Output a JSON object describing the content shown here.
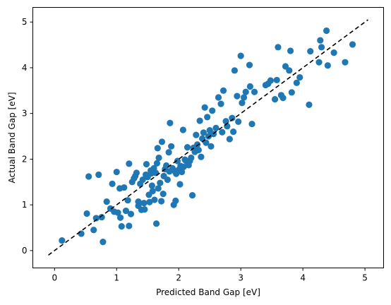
{
  "chart_data": {
    "type": "scatter",
    "title": "",
    "xlabel": "Predicted Band Gap [eV]",
    "ylabel": "Actual Band Gap [eV]",
    "xlim": [
      -0.35,
      5.3
    ],
    "ylim": [
      -0.38,
      5.32
    ],
    "xticks": [
      0,
      1,
      2,
      3,
      4,
      5
    ],
    "yticks": [
      0,
      1,
      2,
      3,
      4,
      5
    ],
    "grid": false,
    "legend": "none",
    "colors": {
      "points": "#1f77b4",
      "reference_line": "#000000"
    },
    "reference_line": {
      "style": "dashed",
      "x": [
        -0.1,
        5.05
      ],
      "y": [
        -0.1,
        5.05
      ]
    },
    "points": [
      [
        0.12,
        0.22
      ],
      [
        0.43,
        0.37
      ],
      [
        0.52,
        0.81
      ],
      [
        0.55,
        1.62
      ],
      [
        0.63,
        0.45
      ],
      [
        0.67,
        0.71
      ],
      [
        0.71,
        1.66
      ],
      [
        0.76,
        0.73
      ],
      [
        0.78,
        0.19
      ],
      [
        0.84,
        1.07
      ],
      [
        0.9,
        0.92
      ],
      [
        0.93,
        1.46
      ],
      [
        0.96,
        0.85
      ],
      [
        1.0,
        1.72
      ],
      [
        1.02,
        0.83
      ],
      [
        1.05,
        1.36
      ],
      [
        1.06,
        0.72
      ],
      [
        1.08,
        0.53
      ],
      [
        1.12,
        1.38
      ],
      [
        1.15,
        0.87
      ],
      [
        1.18,
        1.1
      ],
      [
        1.2,
        0.54
      ],
      [
        1.2,
        1.9
      ],
      [
        1.23,
        0.8
      ],
      [
        1.25,
        1.5
      ],
      [
        1.28,
        1.58
      ],
      [
        1.3,
        1.63
      ],
      [
        1.32,
        1.7
      ],
      [
        1.35,
        0.98
      ],
      [
        1.35,
        1.07
      ],
      [
        1.38,
        1.46
      ],
      [
        1.4,
        0.89
      ],
      [
        1.42,
        1.55
      ],
      [
        1.44,
        1.04
      ],
      [
        1.45,
        0.9
      ],
      [
        1.47,
        1.66
      ],
      [
        1.48,
        1.89
      ],
      [
        1.5,
        1.61
      ],
      [
        1.52,
        1.22
      ],
      [
        1.53,
        1.06
      ],
      [
        1.55,
        1.75
      ],
      [
        1.56,
        1.69
      ],
      [
        1.57,
        1.42
      ],
      [
        1.58,
        1.3
      ],
      [
        1.6,
        1.8
      ],
      [
        1.61,
        1.11
      ],
      [
        1.63,
        1.7
      ],
      [
        1.64,
        0.59
      ],
      [
        1.65,
        1.91
      ],
      [
        1.66,
        2.24
      ],
      [
        1.67,
        1.36
      ],
      [
        1.68,
        2.03
      ],
      [
        1.7,
        1.48
      ],
      [
        1.72,
        1.08
      ],
      [
        1.73,
        2.38
      ],
      [
        1.75,
        1.24
      ],
      [
        1.76,
        1.63
      ],
      [
        1.78,
        1.78
      ],
      [
        1.8,
        1.86
      ],
      [
        1.82,
        1.55
      ],
      [
        1.84,
        2.15
      ],
      [
        1.85,
        1.73
      ],
      [
        1.86,
        2.79
      ],
      [
        1.88,
        2.28
      ],
      [
        1.9,
        1.8
      ],
      [
        1.92,
        1.0
      ],
      [
        1.94,
        1.73
      ],
      [
        1.95,
        1.09
      ],
      [
        1.96,
        1.68
      ],
      [
        1.98,
        1.96
      ],
      [
        2.0,
        1.77
      ],
      [
        2.02,
        1.45
      ],
      [
        2.03,
        1.85
      ],
      [
        2.05,
        1.72
      ],
      [
        2.07,
        2.64
      ],
      [
        2.08,
        1.83
      ],
      [
        2.1,
        1.99
      ],
      [
        2.12,
        1.96
      ],
      [
        2.14,
        2.26
      ],
      [
        2.16,
        1.87
      ],
      [
        2.18,
        1.96
      ],
      [
        2.2,
        2.03
      ],
      [
        2.22,
        1.21
      ],
      [
        2.24,
        2.25
      ],
      [
        2.26,
        2.16
      ],
      [
        2.28,
        2.53
      ],
      [
        2.3,
        2.32
      ],
      [
        2.32,
        2.2
      ],
      [
        2.34,
        2.84
      ],
      [
        2.36,
        2.05
      ],
      [
        2.38,
        2.45
      ],
      [
        2.4,
        2.58
      ],
      [
        2.42,
        3.13
      ],
      [
        2.44,
        2.36
      ],
      [
        2.46,
        2.92
      ],
      [
        2.48,
        2.5
      ],
      [
        2.5,
        2.63
      ],
      [
        2.52,
        2.28
      ],
      [
        2.54,
        3.06
      ],
      [
        2.56,
        2.55
      ],
      [
        2.6,
        2.68
      ],
      [
        2.64,
        3.35
      ],
      [
        2.68,
        3.21
      ],
      [
        2.7,
        2.59
      ],
      [
        2.72,
        3.5
      ],
      [
        2.76,
        2.83
      ],
      [
        2.78,
        2.72
      ],
      [
        2.82,
        2.44
      ],
      [
        2.86,
        2.9
      ],
      [
        2.88,
        2.6
      ],
      [
        2.9,
        3.94
      ],
      [
        2.94,
        3.38
      ],
      [
        2.96,
        2.82
      ],
      [
        3.0,
        4.26
      ],
      [
        3.02,
        3.23
      ],
      [
        3.05,
        3.35
      ],
      [
        3.08,
        3.47
      ],
      [
        3.14,
        4.06
      ],
      [
        3.15,
        3.59
      ],
      [
        3.18,
        2.77
      ],
      [
        3.22,
        3.47
      ],
      [
        3.4,
        3.62
      ],
      [
        3.44,
        3.65
      ],
      [
        3.48,
        3.72
      ],
      [
        3.55,
        3.31
      ],
      [
        3.58,
        3.73
      ],
      [
        3.6,
        4.45
      ],
      [
        3.65,
        3.4
      ],
      [
        3.68,
        3.34
      ],
      [
        3.72,
        4.03
      ],
      [
        3.78,
        3.94
      ],
      [
        3.8,
        4.37
      ],
      [
        3.82,
        3.46
      ],
      [
        3.9,
        3.67
      ],
      [
        3.95,
        3.79
      ],
      [
        4.1,
        3.19
      ],
      [
        4.12,
        4.36
      ],
      [
        4.26,
        4.12
      ],
      [
        4.28,
        4.6
      ],
      [
        4.3,
        4.45
      ],
      [
        4.38,
        4.81
      ],
      [
        4.4,
        4.05
      ],
      [
        4.5,
        4.33
      ],
      [
        4.68,
        4.12
      ],
      [
        4.8,
        4.51
      ]
    ]
  }
}
